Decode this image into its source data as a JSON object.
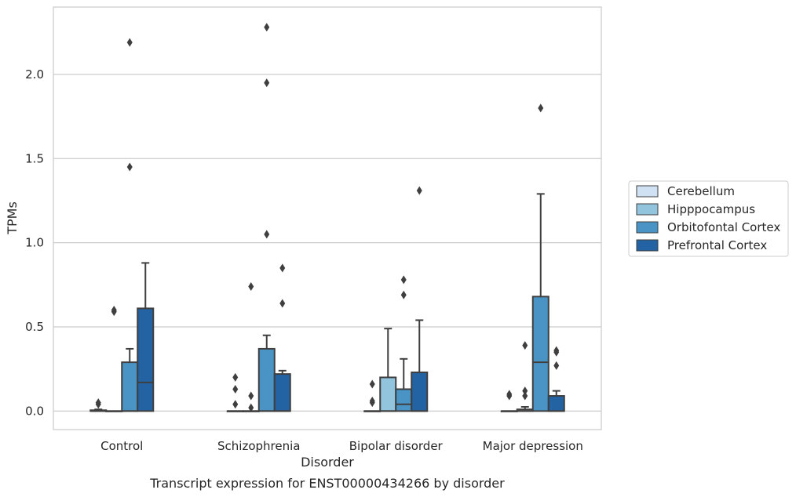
{
  "chart_data": {
    "type": "box",
    "caption": "Transcript expression for ENST00000434266 by disorder",
    "xlabel": "Disorder",
    "ylabel": "TPMs",
    "ylim": [
      -0.11,
      2.4
    ],
    "yticks": [
      0.0,
      0.5,
      1.0,
      1.5,
      2.0
    ],
    "ytick_labels": [
      "0.0",
      "0.5",
      "1.0",
      "1.5",
      "2.0"
    ],
    "grid": "horizontal",
    "legend_position": "right",
    "categories": [
      "Control",
      "Schizophrenia",
      "Bipolar disorder",
      "Major depression"
    ],
    "series": [
      {
        "name": "Cerebellum",
        "color": "#cfe1f2",
        "boxes": [
          {
            "q1": 0.0,
            "median": 0.0,
            "q3": 0.005,
            "whisker_low": 0.0,
            "whisker_high": 0.01,
            "outliers": [
              0.04,
              0.05
            ]
          },
          {
            "q1": 0.0,
            "median": 0.0,
            "q3": 0.0,
            "whisker_low": 0.0,
            "whisker_high": 0.0,
            "outliers": [
              0.04,
              0.13,
              0.2
            ]
          },
          {
            "q1": 0.0,
            "median": 0.0,
            "q3": 0.0,
            "whisker_low": 0.0,
            "whisker_high": 0.0,
            "outliers": [
              0.05,
              0.06,
              0.16
            ]
          },
          {
            "q1": 0.0,
            "median": 0.0,
            "q3": 0.0,
            "whisker_low": 0.0,
            "whisker_high": 0.0,
            "outliers": [
              0.09,
              0.1
            ]
          }
        ]
      },
      {
        "name": "Hipppocampus",
        "color": "#93c4de",
        "boxes": [
          {
            "q1": 0.0,
            "median": 0.0,
            "q3": 0.0,
            "whisker_low": 0.0,
            "whisker_high": 0.0,
            "outliers": [
              0.59,
              0.6
            ]
          },
          {
            "q1": 0.0,
            "median": 0.0,
            "q3": 0.0,
            "whisker_low": 0.0,
            "whisker_high": 0.0,
            "outliers": [
              0.02,
              0.09,
              0.74
            ]
          },
          {
            "q1": 0.0,
            "median": 0.0,
            "q3": 0.2,
            "whisker_low": 0.0,
            "whisker_high": 0.49,
            "outliers": []
          },
          {
            "q1": 0.0,
            "median": 0.0,
            "q3": 0.01,
            "whisker_low": 0.0,
            "whisker_high": 0.025,
            "outliers": [
              0.09,
              0.12,
              0.39
            ]
          }
        ]
      },
      {
        "name": "Orbitofontal Cortex",
        "color": "#4a93c5",
        "boxes": [
          {
            "q1": 0.0,
            "median": 0.0,
            "q3": 0.29,
            "whisker_low": 0.0,
            "whisker_high": 0.37,
            "outliers": [
              1.45,
              2.19
            ]
          },
          {
            "q1": 0.0,
            "median": 0.0,
            "q3": 0.37,
            "whisker_low": 0.0,
            "whisker_high": 0.45,
            "outliers": [
              1.05,
              1.95,
              2.28
            ]
          },
          {
            "q1": 0.0,
            "median": 0.04,
            "q3": 0.13,
            "whisker_low": 0.0,
            "whisker_high": 0.31,
            "outliers": [
              0.69,
              0.78
            ]
          },
          {
            "q1": 0.0,
            "median": 0.29,
            "q3": 0.68,
            "whisker_low": 0.0,
            "whisker_high": 1.29,
            "outliers": [
              1.8
            ]
          }
        ]
      },
      {
        "name": "Prefrontal Cortex",
        "color": "#2363a3",
        "boxes": [
          {
            "q1": 0.0,
            "median": 0.17,
            "q3": 0.61,
            "whisker_low": 0.0,
            "whisker_high": 0.88,
            "outliers": []
          },
          {
            "q1": 0.0,
            "median": 0.0,
            "q3": 0.22,
            "whisker_low": 0.0,
            "whisker_high": 0.24,
            "outliers": [
              0.64,
              0.85
            ]
          },
          {
            "q1": 0.0,
            "median": 0.0,
            "q3": 0.23,
            "whisker_low": 0.0,
            "whisker_high": 0.54,
            "outliers": [
              1.31
            ]
          },
          {
            "q1": 0.0,
            "median": 0.0,
            "q3": 0.09,
            "whisker_low": 0.0,
            "whisker_high": 0.12,
            "outliers": [
              0.27,
              0.35,
              0.36
            ]
          }
        ]
      }
    ]
  }
}
